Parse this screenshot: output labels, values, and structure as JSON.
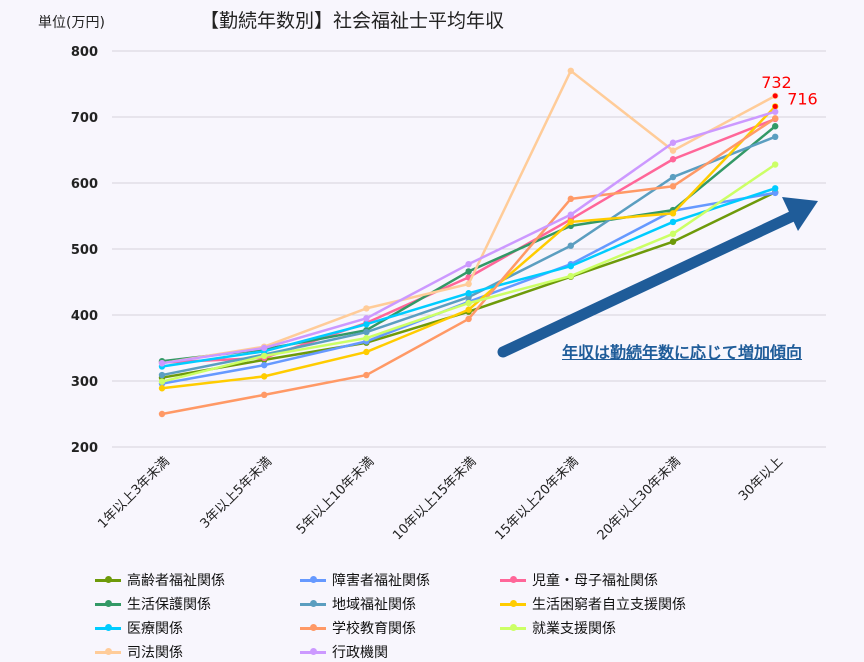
{
  "chart_data": {
    "type": "line",
    "title": "【勤続年数別】社会福祉士平均年収",
    "ylabel": "単位(万円)",
    "xlabel": "",
    "ylim": [
      200,
      800
    ],
    "yticks": [
      200,
      300,
      400,
      500,
      600,
      700,
      800
    ],
    "grid": true,
    "legend_position": "bottom",
    "categories": [
      "1年以上3年未満",
      "3年以上5年未満",
      "5年以上10年未満",
      "10年以上15年未満",
      "15年以上20年未満",
      "20年以上30年未満",
      "30年以上"
    ],
    "series": [
      {
        "name": "高齢者福祉関係",
        "color": "#6e9a0a",
        "values": [
          305,
          332,
          358,
          405,
          458,
          511,
          586
        ]
      },
      {
        "name": "障害者福祉関係",
        "color": "#6699ff",
        "values": [
          296,
          324,
          360,
          420,
          477,
          558,
          585
        ]
      },
      {
        "name": "児童・母子福祉関係",
        "color": "#ff6699",
        "values": [
          328,
          335,
          388,
          457,
          545,
          636,
          697
        ]
      },
      {
        "name": "生活保護関係",
        "color": "#339966",
        "values": [
          330,
          348,
          377,
          466,
          535,
          559,
          686
        ]
      },
      {
        "name": "地域福祉関係",
        "color": "#5b9ec0",
        "values": [
          309,
          340,
          374,
          427,
          505,
          609,
          670
        ]
      },
      {
        "name": "生活困窮者自立支援関係",
        "color": "#ffcc00",
        "values": [
          289,
          307,
          344,
          408,
          541,
          554,
          716
        ]
      },
      {
        "name": "医療関係",
        "color": "#00ccff",
        "values": [
          322,
          345,
          386,
          433,
          474,
          541,
          592
        ]
      },
      {
        "name": "学校教育関係",
        "color": "#ff9966",
        "values": [
          250,
          279,
          309,
          394,
          576,
          595,
          698
        ]
      },
      {
        "name": "就業支援関係",
        "color": "#ccff66",
        "values": [
          299,
          338,
          365,
          418,
          459,
          523,
          628
        ]
      },
      {
        "name": "司法関係",
        "color": "#ffcc99",
        "values": [
          327,
          352,
          410,
          447,
          770,
          649,
          732
        ]
      },
      {
        "name": "行政機関",
        "color": "#cc99ff",
        "values": [
          327,
          350,
          395,
          477,
          552,
          661,
          708
        ]
      }
    ],
    "annotations": [
      {
        "text": "732",
        "value": 732,
        "color": "#ff0000"
      },
      {
        "text": "716",
        "value": 716,
        "color": "#ff0000"
      },
      {
        "text": "年収は勤続年数に応じて増加傾向",
        "color": "#1f5c99"
      }
    ]
  }
}
